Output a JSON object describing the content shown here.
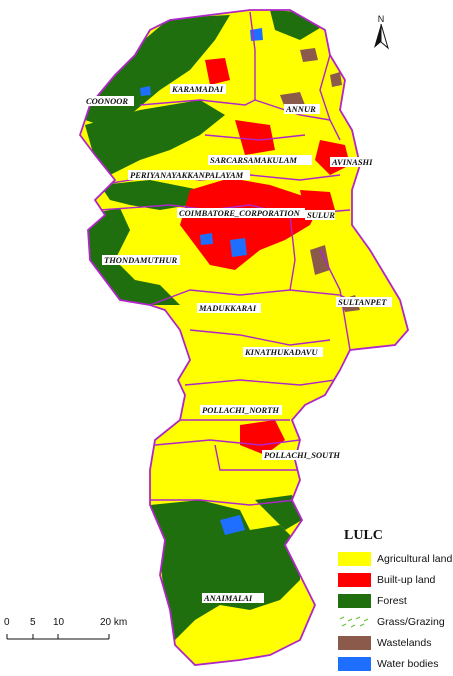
{
  "legend": {
    "title": "LULC",
    "items": [
      {
        "label": "Agricultural land",
        "color": "#ffff00",
        "pattern": "solid"
      },
      {
        "label": "Built-up land",
        "color": "#ff0000",
        "pattern": "solid"
      },
      {
        "label": "Forest",
        "color": "#1f6f0f",
        "pattern": "solid"
      },
      {
        "label": "Grass/Grazing",
        "color": "#8bc34a",
        "pattern": "dashes"
      },
      {
        "label": "Wastelands",
        "color": "#8b5a4a",
        "pattern": "solid"
      },
      {
        "label": "Water bodies",
        "color": "#1e6fff",
        "pattern": "solid"
      }
    ]
  },
  "north_arrow": {
    "letter": "N"
  },
  "scale_bar": {
    "ticks": [
      "0",
      "5",
      "10",
      "20 km"
    ]
  },
  "blocks": [
    {
      "name": "COONOOR"
    },
    {
      "name": "KARAMADAI"
    },
    {
      "name": "ANNUR"
    },
    {
      "name": "SARCARSAMAKULAM"
    },
    {
      "name": "AVINASHI"
    },
    {
      "name": "PERIYANAYAKKANPALAYAM"
    },
    {
      "name": "COIMBATORE_CORPORATION"
    },
    {
      "name": "SULUR"
    },
    {
      "name": "THONDAMUTHUR"
    },
    {
      "name": "SULTANPET"
    },
    {
      "name": "MADUKKARAI"
    },
    {
      "name": "KINATHUKADAVU"
    },
    {
      "name": "POLLACHI_NORTH"
    },
    {
      "name": "POLLACHI_SOUTH"
    },
    {
      "name": "ANAIMALAI"
    }
  ],
  "colors": {
    "boundary": "#b026c8",
    "agricultural": "#ffff00",
    "builtup": "#ff0000",
    "forest": "#1f6f0f",
    "wasteland": "#8b5a4a",
    "water": "#1e6fff"
  }
}
